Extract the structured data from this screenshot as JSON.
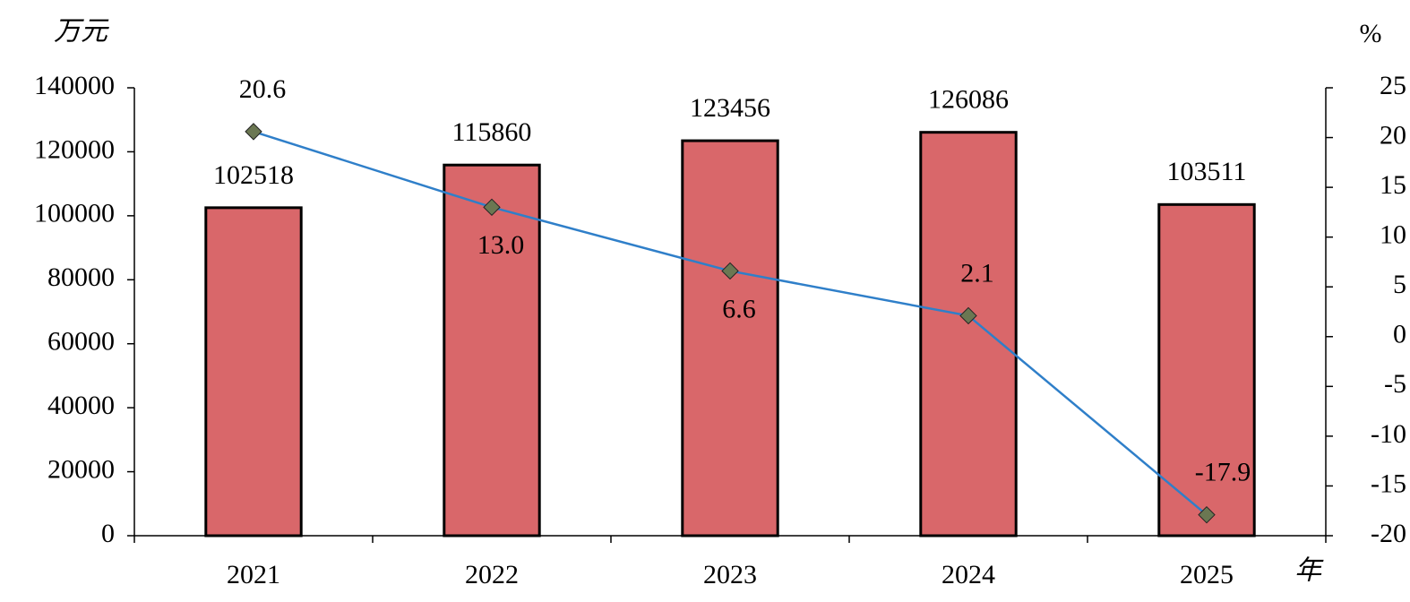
{
  "chart_data": {
    "type": "bar",
    "y_unit": "万元",
    "y2_unit": "%",
    "x_label": "年",
    "categories": [
      "2021",
      "2022",
      "2023",
      "2024",
      "2025"
    ],
    "series": [
      {
        "type": "bar",
        "color": "#d9676a",
        "values": [
          102518,
          115860,
          123456,
          126086,
          103511
        ]
      },
      {
        "type": "line",
        "axis": "y2",
        "color": "#2f7fc9",
        "marker_color": "#6b7752",
        "values": [
          20.6,
          13.0,
          6.6,
          2.1,
          -17.9
        ],
        "value_labels": [
          "20.6",
          "13.0",
          "6.6",
          "2.1",
          "-17.9"
        ]
      }
    ],
    "ylim": [
      0,
      140000
    ],
    "yticks": [
      0,
      20000,
      40000,
      60000,
      80000,
      100000,
      120000,
      140000
    ],
    "y2lim": [
      -20,
      25
    ],
    "y2ticks": [
      -20,
      -15,
      -10,
      -5,
      0,
      5,
      10,
      15,
      20,
      25
    ],
    "grid": false
  }
}
